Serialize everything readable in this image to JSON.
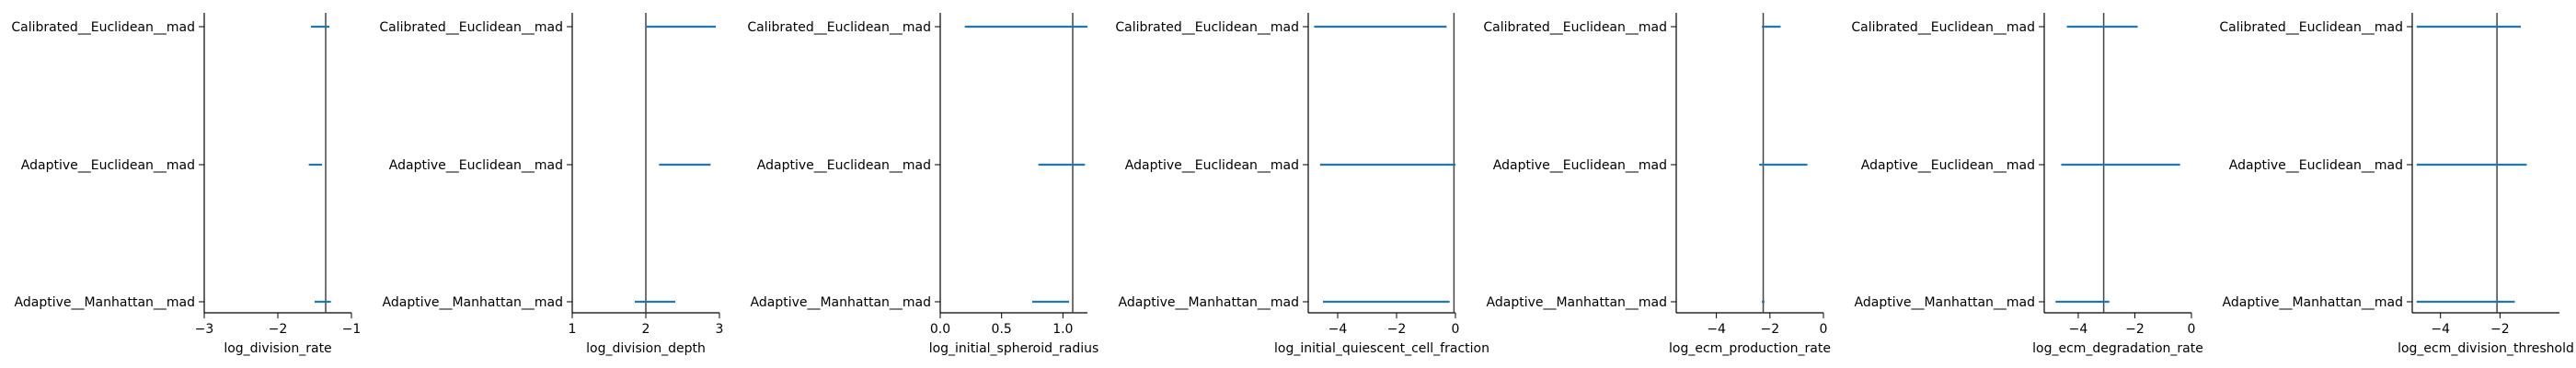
{
  "figure": {
    "background": "#ffffff"
  },
  "chart_data": [
    {
      "type": "interval",
      "categories": [
        "Calibrated__Euclidean__mad",
        "Adaptive__Euclidean__mad",
        "Adaptive__Manhattan__mad"
      ],
      "intervals": [
        [
          -1.55,
          -1.3
        ],
        [
          -1.58,
          -1.4
        ],
        [
          -1.5,
          -1.28
        ]
      ],
      "reference": -1.35,
      "xlabel": "log_division_rate",
      "xlim": [
        -3,
        -1
      ],
      "xticks": [
        -3,
        -2,
        -1
      ],
      "xtick_labels": [
        "−3",
        "−2",
        "−1"
      ],
      "color": "#1f77b4"
    },
    {
      "type": "interval",
      "categories": [
        "Calibrated__Euclidean__mad",
        "Adaptive__Euclidean__mad",
        "Adaptive__Manhattan__mad"
      ],
      "intervals": [
        [
          2.0,
          2.95
        ],
        [
          2.18,
          2.88
        ],
        [
          1.85,
          2.4
        ]
      ],
      "reference": 2.0,
      "xlabel": "log_division_depth",
      "xlim": [
        1,
        3
      ],
      "xticks": [
        1,
        2,
        3
      ],
      "xtick_labels": [
        "1",
        "2",
        "3"
      ],
      "color": "#1f77b4"
    },
    {
      "type": "interval",
      "categories": [
        "Calibrated__Euclidean__mad",
        "Adaptive__Euclidean__mad",
        "Adaptive__Manhattan__mad"
      ],
      "intervals": [
        [
          0.2,
          1.2
        ],
        [
          0.8,
          1.18
        ],
        [
          0.75,
          1.05
        ]
      ],
      "reference": 1.08,
      "xlabel": "log_initial_spheroid_radius",
      "xlim": [
        0,
        1.2
      ],
      "xticks": [
        0,
        0.5,
        1
      ],
      "xtick_labels": [
        "0.0",
        "0.5",
        "1.0"
      ],
      "color": "#1f77b4"
    },
    {
      "type": "interval",
      "categories": [
        "Calibrated__Euclidean__mad",
        "Adaptive__Euclidean__mad",
        "Adaptive__Manhattan__mad"
      ],
      "intervals": [
        [
          -4.8,
          -0.3
        ],
        [
          -4.6,
          0
        ],
        [
          -4.5,
          -0.2
        ]
      ],
      "reference": -0.05,
      "xlabel": "log_initial_quiescent_cell_fraction",
      "xlim": [
        -5,
        0
      ],
      "xticks": [
        -4,
        -2,
        0
      ],
      "xtick_labels": [
        "−4",
        "−2",
        "0"
      ],
      "color": "#1f77b4"
    },
    {
      "type": "interval",
      "categories": [
        "Calibrated__Euclidean__mad",
        "Adaptive__Euclidean__mad",
        "Adaptive__Manhattan__mad"
      ],
      "intervals": [
        [
          -2.3,
          -1.6
        ],
        [
          -2.4,
          -0.6
        ],
        [
          -2.3,
          -2.2
        ]
      ],
      "reference": -2.25,
      "xlabel": "log_ecm_production_rate",
      "xlim": [
        -5.5,
        0
      ],
      "xticks": [
        -4,
        -2,
        0
      ],
      "xtick_labels": [
        "−4",
        "−2",
        "0"
      ],
      "color": "#1f77b4"
    },
    {
      "type": "interval",
      "categories": [
        "Calibrated__Euclidean__mad",
        "Adaptive__Euclidean__mad",
        "Adaptive__Manhattan__mad"
      ],
      "intervals": [
        [
          -4.4,
          -1.9
        ],
        [
          -4.6,
          -0.4
        ],
        [
          -4.8,
          -2.9
        ]
      ],
      "reference": -3.1,
      "xlabel": "log_ecm_degradation_rate",
      "xlim": [
        -5.2,
        0
      ],
      "xticks": [
        -4,
        -2,
        0
      ],
      "xtick_labels": [
        "−4",
        "−2",
        "0"
      ],
      "color": "#1f77b4"
    },
    {
      "type": "interval",
      "categories": [
        "Calibrated__Euclidean__mad",
        "Adaptive__Euclidean__mad",
        "Adaptive__Manhattan__mad"
      ],
      "intervals": [
        [
          -4.8,
          -1.3
        ],
        [
          -4.8,
          -1.1
        ],
        [
          -4.8,
          -1.5
        ]
      ],
      "reference": -2.1,
      "xlabel": "log_ecm_division_threshold",
      "xlim": [
        -4.95,
        0
      ],
      "xticks": [
        -4,
        -2
      ],
      "xtick_labels": [
        "−4",
        "−2"
      ],
      "color": "#1f77b4"
    }
  ]
}
